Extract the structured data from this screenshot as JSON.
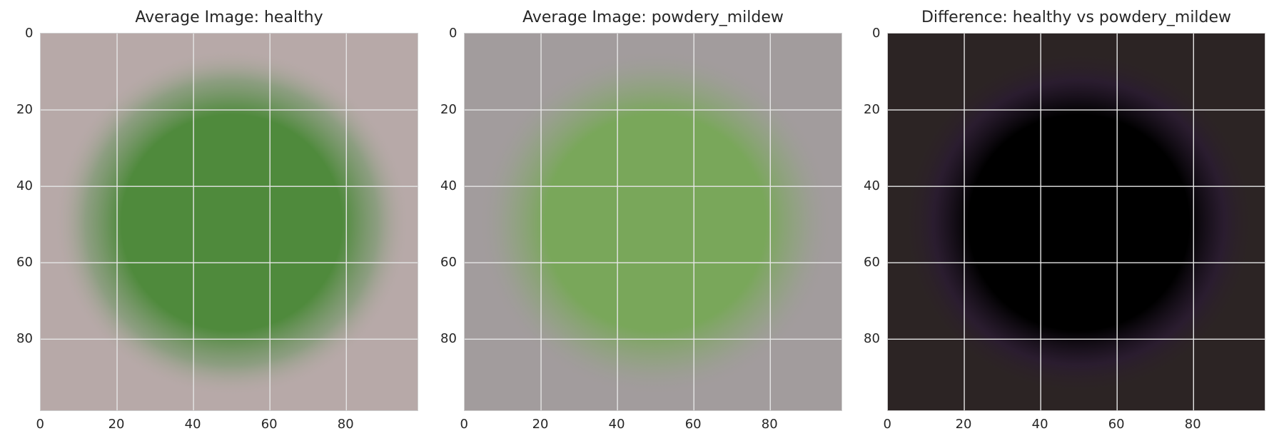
{
  "chart_data": [
    {
      "type": "image",
      "title": "Average Image: healthy",
      "xlabel": "",
      "ylabel": "",
      "xlim": [
        0,
        99
      ],
      "ylim": [
        99,
        0
      ],
      "xticks": [
        0,
        20,
        40,
        60,
        80
      ],
      "yticks": [
        0,
        20,
        40,
        60,
        80
      ],
      "grid": true,
      "background_color": "#b7a9a8",
      "blob_color": "#4f8a3c",
      "blob_edge_color": "#7f9a74"
    },
    {
      "type": "image",
      "title": "Average Image: powdery_mildew",
      "xlabel": "",
      "ylabel": "",
      "xlim": [
        0,
        99
      ],
      "ylim": [
        99,
        0
      ],
      "xticks": [
        0,
        20,
        40,
        60,
        80
      ],
      "yticks": [
        0,
        20,
        40,
        60,
        80
      ],
      "grid": true,
      "background_color": "#a29c9d",
      "blob_color": "#79a75a",
      "blob_edge_color": "#92a283"
    },
    {
      "type": "image",
      "title": "Difference: healthy vs powdery_mildew",
      "xlabel": "",
      "ylabel": "",
      "xlim": [
        0,
        99
      ],
      "ylim": [
        99,
        0
      ],
      "xticks": [
        0,
        20,
        40,
        60,
        80
      ],
      "yticks": [
        0,
        20,
        40,
        60,
        80
      ],
      "grid": true,
      "background_color": "#2c2424",
      "blob_color": "#000000",
      "blob_edge_color": "#2a1a33"
    }
  ],
  "colors": {
    "grid": "#e6e6e6",
    "tick_text": "#262626",
    "frame": "#cfcfcf"
  }
}
